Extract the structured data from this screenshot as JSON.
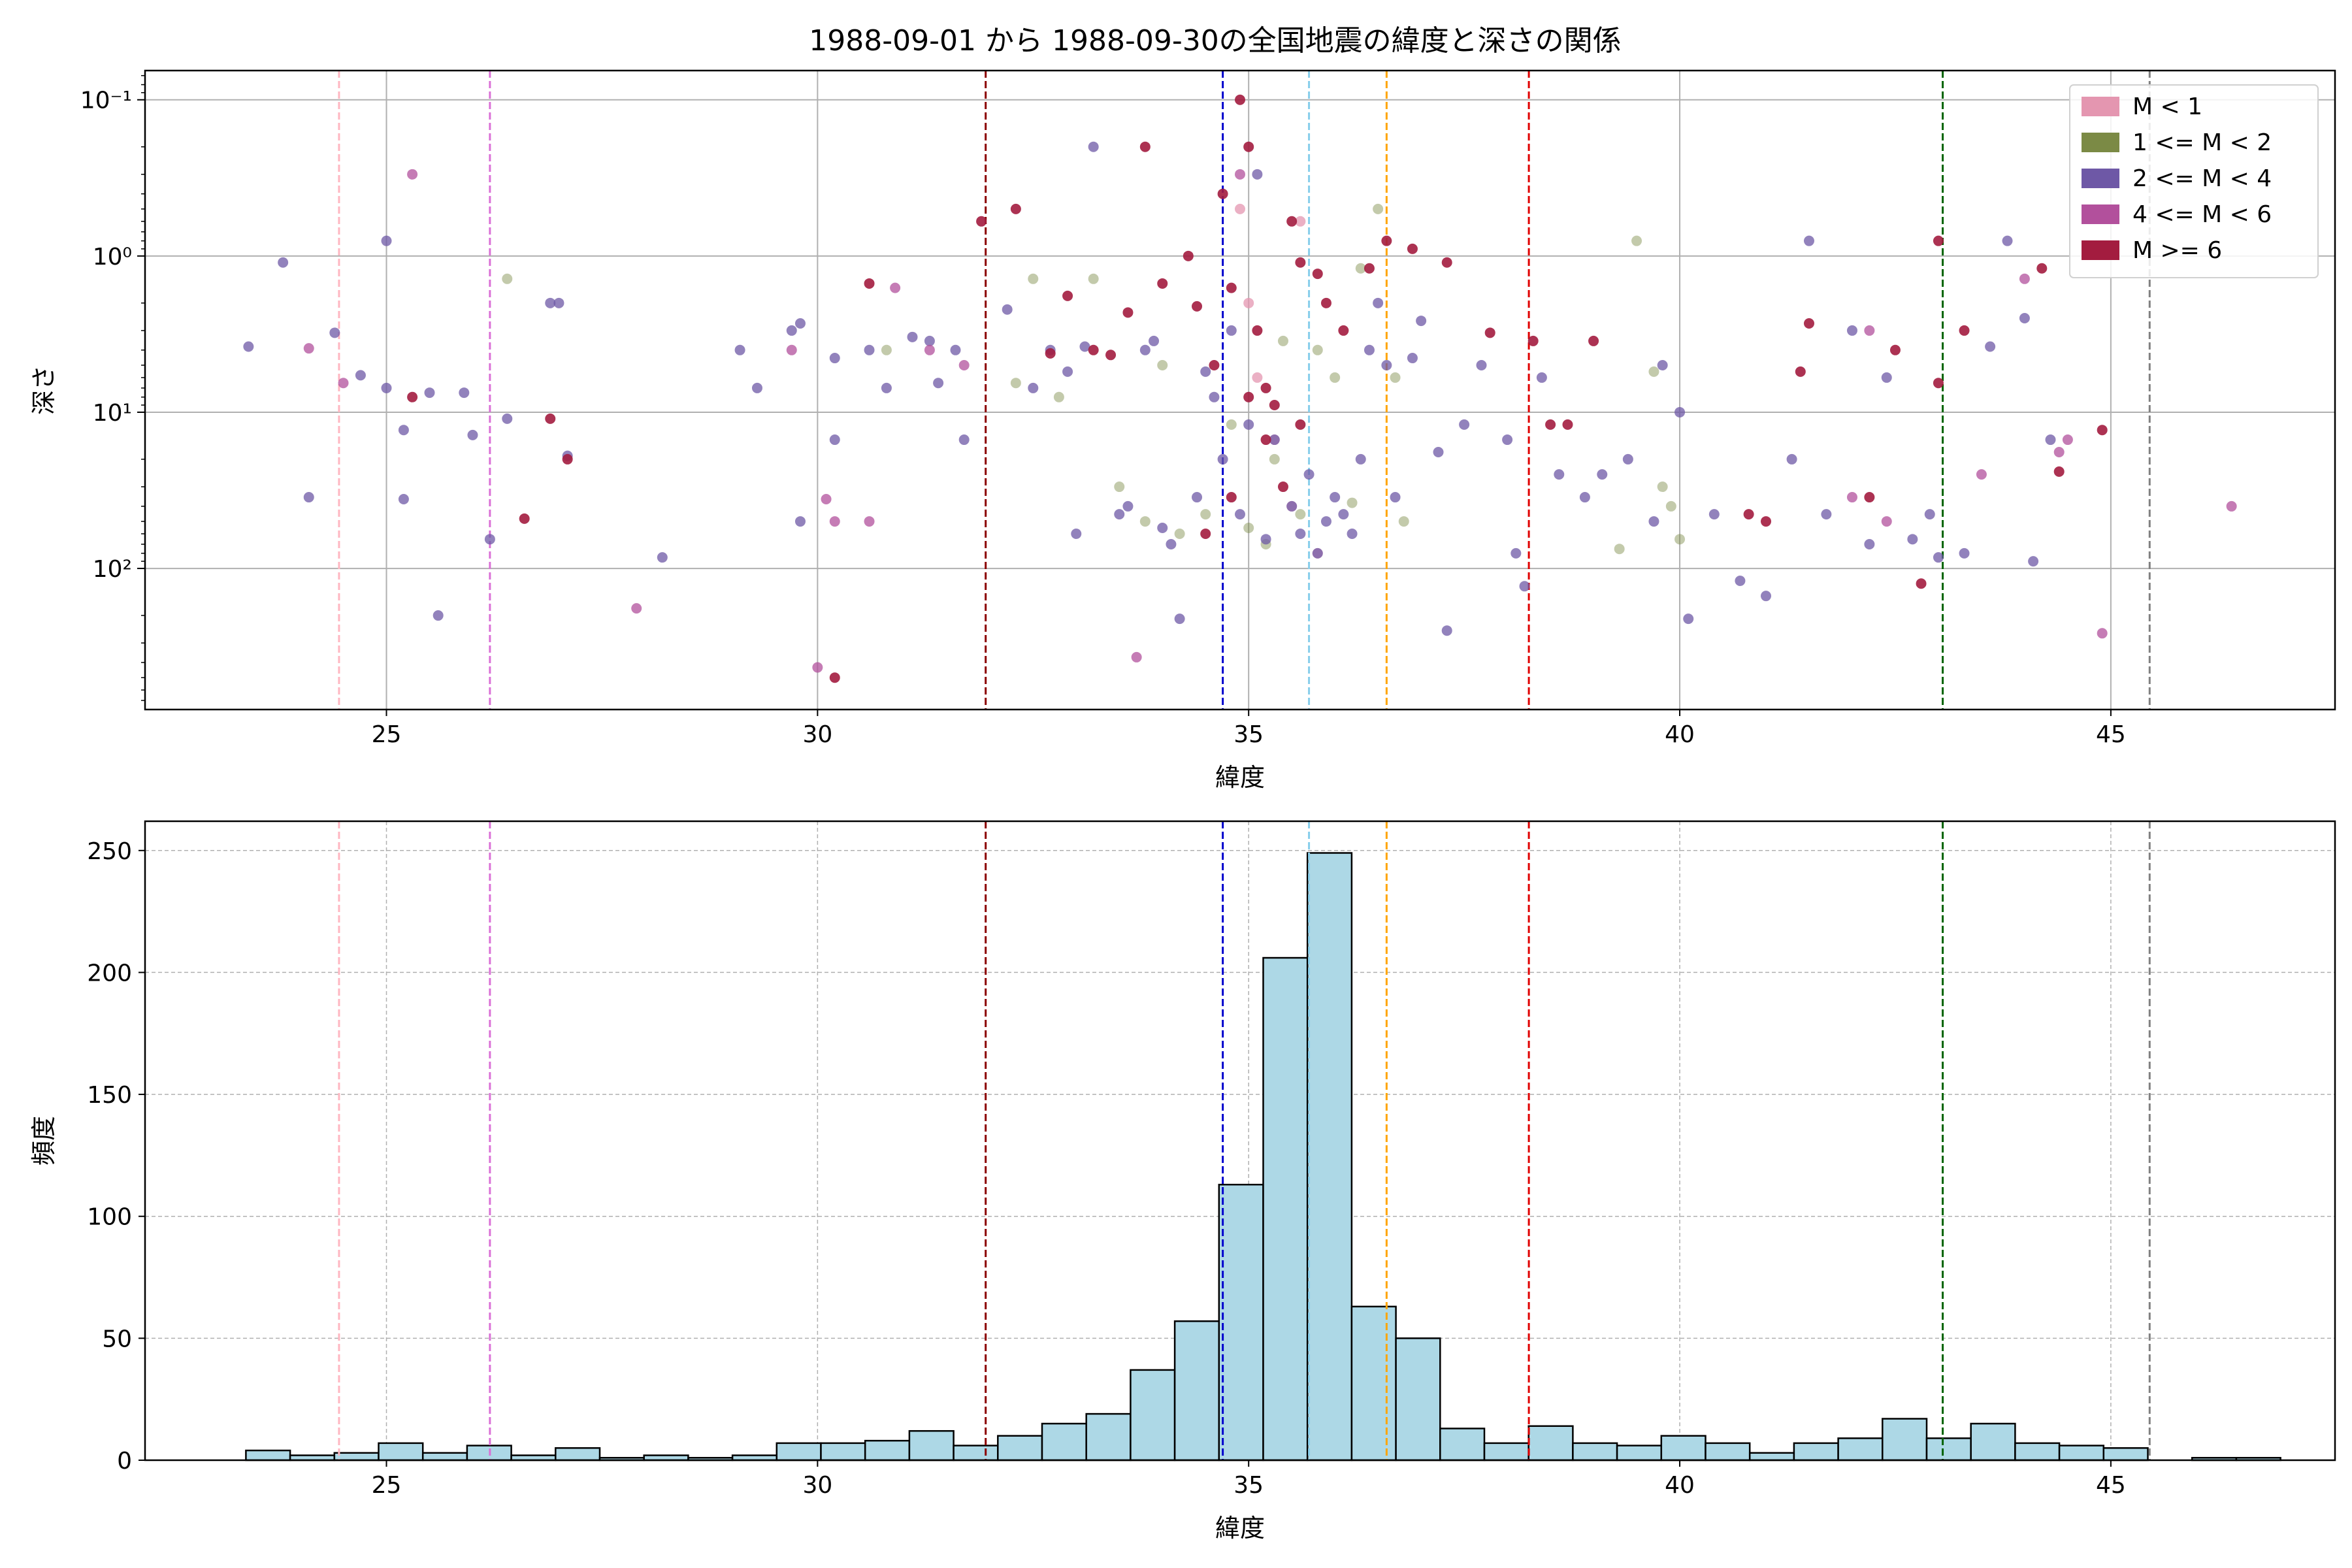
{
  "title": "1988-09-01 から 1988-09-30の全国地震の緯度と深さの関係",
  "colors": {
    "m_lt1": "#e496b0",
    "m_1_2": "#7b8a45",
    "m_2_4": "#6e58a6",
    "m_4_6": "#b2509c",
    "m_ge6": "#a31c3f",
    "hist_fill": "#add8e6",
    "grid": "#b0b0b0"
  },
  "chart_data": [
    {
      "type": "scatter",
      "title": "1988-09-01 から 1988-09-30の全国地震の緯度と深さの関係",
      "xlabel": "緯度",
      "ylabel": "深さ",
      "xlim": [
        22.2,
        47.6
      ],
      "y_scale": "log",
      "y_inverted": true,
      "ylim": [
        0.065,
        800
      ],
      "xticks": [
        25,
        30,
        35,
        40,
        45
      ],
      "ytick_labels": [
        "10⁻¹",
        "10⁰",
        "10¹",
        "10²"
      ],
      "grid": true,
      "legend_position": "top-right",
      "legend": [
        "M < 1",
        "1 <= M < 2",
        "2 <= M < 4",
        "4 <= M < 6",
        "M >= 6"
      ],
      "reference_lines": [
        {
          "x": 24.45,
          "color": "#ffb6c1"
        },
        {
          "x": 26.2,
          "color": "#da70d6"
        },
        {
          "x": 31.95,
          "color": "#8b0000"
        },
        {
          "x": 34.7,
          "color": "#0000cd"
        },
        {
          "x": 35.7,
          "color": "#87ceeb"
        },
        {
          "x": 36.6,
          "color": "#ffa500"
        },
        {
          "x": 38.25,
          "color": "#e00000"
        },
        {
          "x": 43.05,
          "color": "#006400"
        },
        {
          "x": 45.45,
          "color": "#808080"
        }
      ],
      "series": [
        {
          "name": "M < 1",
          "color": "#e496b0",
          "points": [
            [
              34.9,
              0.5
            ],
            [
              35.0,
              2
            ],
            [
              35.1,
              6
            ],
            [
              35.3,
              15
            ],
            [
              35.5,
              40
            ],
            [
              35.6,
              0.6
            ],
            [
              35.8,
              80
            ]
          ]
        },
        {
          "name": "1 <= M < 2",
          "color": "#7b8a45",
          "points": [
            [
              26.4,
              1.4
            ],
            [
              30.8,
              4
            ],
            [
              32.3,
              6.5
            ],
            [
              32.5,
              1.4
            ],
            [
              32.8,
              8
            ],
            [
              33.2,
              1.4
            ],
            [
              33.5,
              30
            ],
            [
              33.8,
              50
            ],
            [
              34.0,
              5
            ],
            [
              34.2,
              60
            ],
            [
              34.5,
              45
            ],
            [
              34.8,
              12
            ],
            [
              35.0,
              55
            ],
            [
              35.2,
              70
            ],
            [
              35.3,
              20
            ],
            [
              35.4,
              3.5
            ],
            [
              35.6,
              45
            ],
            [
              35.8,
              4
            ],
            [
              36.0,
              6
            ],
            [
              36.2,
              38
            ],
            [
              36.3,
              1.2
            ],
            [
              36.5,
              0.5
            ],
            [
              36.7,
              6
            ],
            [
              36.8,
              50
            ],
            [
              39.3,
              75
            ],
            [
              39.5,
              0.8
            ],
            [
              39.7,
              5.5
            ],
            [
              39.9,
              40
            ],
            [
              40.0,
              65
            ],
            [
              39.8,
              30
            ]
          ]
        },
        {
          "name": "2 <= M < 4",
          "color": "#6e58a6",
          "points": [
            [
              23.4,
              3.8
            ],
            [
              23.8,
              1.1
            ],
            [
              24.1,
              35
            ],
            [
              24.4,
              3.1
            ],
            [
              24.7,
              5.8
            ],
            [
              25.0,
              0.8
            ],
            [
              25.0,
              7
            ],
            [
              25.2,
              13
            ],
            [
              25.2,
              36
            ],
            [
              25.5,
              7.5
            ],
            [
              25.6,
              200
            ],
            [
              25.9,
              7.5
            ],
            [
              26.0,
              14
            ],
            [
              26.2,
              65
            ],
            [
              26.4,
              11
            ],
            [
              26.9,
              2
            ],
            [
              27.0,
              2
            ],
            [
              27.1,
              19
            ],
            [
              28.2,
              85
            ],
            [
              29.1,
              4
            ],
            [
              29.3,
              7
            ],
            [
              29.7,
              3
            ],
            [
              29.8,
              2.7
            ],
            [
              29.8,
              50
            ],
            [
              30.2,
              4.5
            ],
            [
              30.2,
              15
            ],
            [
              30.6,
              4
            ],
            [
              30.8,
              7
            ],
            [
              31.1,
              3.3
            ],
            [
              31.3,
              3.5
            ],
            [
              31.4,
              6.5
            ],
            [
              31.6,
              4
            ],
            [
              31.7,
              15
            ],
            [
              32.2,
              2.2
            ],
            [
              32.5,
              7
            ],
            [
              32.7,
              4
            ],
            [
              32.9,
              5.5
            ],
            [
              33.0,
              60
            ],
            [
              33.1,
              3.8
            ],
            [
              33.2,
              0.2
            ],
            [
              33.5,
              45
            ],
            [
              33.6,
              40
            ],
            [
              33.8,
              4
            ],
            [
              33.9,
              3.5
            ],
            [
              34.0,
              55
            ],
            [
              34.1,
              70
            ],
            [
              34.2,
              210
            ],
            [
              34.4,
              35
            ],
            [
              34.5,
              5.5
            ],
            [
              34.6,
              8
            ],
            [
              34.7,
              20
            ],
            [
              34.8,
              3
            ],
            [
              34.9,
              45
            ],
            [
              35.0,
              12
            ],
            [
              35.2,
              65
            ],
            [
              35.1,
              0.3
            ],
            [
              35.3,
              15
            ],
            [
              35.5,
              40
            ],
            [
              35.6,
              60
            ],
            [
              35.7,
              25
            ],
            [
              35.8,
              80
            ],
            [
              35.9,
              50
            ],
            [
              36.0,
              35
            ],
            [
              36.1,
              45
            ],
            [
              36.2,
              60
            ],
            [
              36.3,
              20
            ],
            [
              36.4,
              4
            ],
            [
              36.5,
              2
            ],
            [
              36.6,
              5
            ],
            [
              36.7,
              35
            ],
            [
              36.9,
              4.5
            ],
            [
              37.0,
              2.6
            ],
            [
              37.2,
              18
            ],
            [
              37.3,
              250
            ],
            [
              37.5,
              12
            ],
            [
              37.7,
              5
            ],
            [
              38.0,
              15
            ],
            [
              38.1,
              80
            ],
            [
              38.2,
              130
            ],
            [
              38.4,
              6
            ],
            [
              38.6,
              25
            ],
            [
              38.9,
              35
            ],
            [
              39.1,
              25
            ],
            [
              39.4,
              20
            ],
            [
              39.7,
              50
            ],
            [
              39.8,
              5
            ],
            [
              40.0,
              10
            ],
            [
              40.1,
              210
            ],
            [
              40.4,
              45
            ],
            [
              40.7,
              120
            ],
            [
              41.0,
              150
            ],
            [
              41.3,
              20
            ],
            [
              41.5,
              0.8
            ],
            [
              41.7,
              45
            ],
            [
              42.0,
              3
            ],
            [
              42.2,
              70
            ],
            [
              42.4,
              6
            ],
            [
              42.7,
              65
            ],
            [
              42.9,
              45
            ],
            [
              43.0,
              85
            ],
            [
              43.3,
              80
            ],
            [
              43.6,
              3.8
            ],
            [
              43.8,
              0.8
            ],
            [
              44.0,
              2.5
            ],
            [
              44.1,
              90
            ],
            [
              44.3,
              15
            ]
          ]
        },
        {
          "name": "4 <= M < 6",
          "color": "#b2509c",
          "points": [
            [
              24.1,
              3.9
            ],
            [
              24.5,
              6.5
            ],
            [
              25.3,
              0.3
            ],
            [
              27.9,
              180
            ],
            [
              29.7,
              4
            ],
            [
              30.0,
              430
            ],
            [
              30.1,
              36
            ],
            [
              30.2,
              50
            ],
            [
              30.6,
              50
            ],
            [
              30.9,
              1.6
            ],
            [
              31.3,
              4
            ],
            [
              31.7,
              5
            ],
            [
              33.7,
              370
            ],
            [
              34.9,
              0.3
            ],
            [
              42.0,
              35
            ],
            [
              42.4,
              50
            ],
            [
              42.2,
              3
            ],
            [
              43.5,
              25
            ],
            [
              44.0,
              1.4
            ],
            [
              44.4,
              18
            ],
            [
              44.5,
              15
            ],
            [
              44.9,
              260
            ],
            [
              46.4,
              40
            ]
          ]
        },
        {
          "name": "M >= 6",
          "color": "#a31c3f",
          "points": [
            [
              25.3,
              8
            ],
            [
              26.6,
              48
            ],
            [
              26.9,
              11
            ],
            [
              27.1,
              20
            ],
            [
              30.2,
              500
            ],
            [
              30.6,
              1.5
            ],
            [
              31.9,
              0.6
            ],
            [
              32.3,
              0.5
            ],
            [
              32.7,
              4.2
            ],
            [
              32.9,
              1.8
            ],
            [
              33.2,
              4
            ],
            [
              33.4,
              4.3
            ],
            [
              33.6,
              2.3
            ],
            [
              33.8,
              0.2
            ],
            [
              34.0,
              1.5
            ],
            [
              34.3,
              1.0
            ],
            [
              34.4,
              2.1
            ],
            [
              34.6,
              5.0
            ],
            [
              34.7,
              0.4
            ],
            [
              34.8,
              1.6
            ],
            [
              34.9,
              0.1
            ],
            [
              35.0,
              0.2
            ],
            [
              35.1,
              3.0
            ],
            [
              35.2,
              7.0
            ],
            [
              35.3,
              9.0
            ],
            [
              35.5,
              0.6
            ],
            [
              35.6,
              1.1
            ],
            [
              35.8,
              1.3
            ],
            [
              35.9,
              2.0
            ],
            [
              36.1,
              3.0
            ],
            [
              36.4,
              1.2
            ],
            [
              36.6,
              0.8
            ],
            [
              36.9,
              0.9
            ],
            [
              37.3,
              1.1
            ],
            [
              37.8,
              3.1
            ],
            [
              38.3,
              3.5
            ],
            [
              38.5,
              12
            ],
            [
              38.7,
              12
            ],
            [
              39.0,
              3.5
            ],
            [
              40.8,
              45
            ],
            [
              41.0,
              50
            ],
            [
              41.4,
              5.5
            ],
            [
              41.5,
              2.7
            ],
            [
              42.2,
              35
            ],
            [
              42.5,
              4.0
            ],
            [
              42.8,
              125
            ],
            [
              43.0,
              0.8
            ],
            [
              43.0,
              6.5
            ],
            [
              43.3,
              3.0
            ],
            [
              44.2,
              1.2
            ],
            [
              44.4,
              24
            ],
            [
              44.9,
              13
            ],
            [
              35.0,
              8
            ],
            [
              35.2,
              15
            ],
            [
              35.4,
              30
            ],
            [
              35.6,
              12
            ],
            [
              34.5,
              60
            ],
            [
              34.8,
              35
            ]
          ]
        }
      ]
    },
    {
      "type": "bar",
      "xlabel": "緯度",
      "ylabel": "頻度",
      "xlim": [
        22.2,
        47.6
      ],
      "ylim": [
        0,
        262
      ],
      "xticks": [
        25,
        30,
        35,
        40,
        45
      ],
      "yticks": [
        0,
        50,
        100,
        150,
        200,
        250
      ],
      "grid": true,
      "bin_start": 23.37,
      "bin_width": 0.513,
      "values": [
        4,
        2,
        3,
        7,
        3,
        6,
        2,
        5,
        1,
        2,
        1,
        2,
        7,
        7,
        8,
        12,
        6,
        10,
        15,
        19,
        37,
        57,
        113,
        206,
        249,
        63,
        50,
        13,
        7,
        14,
        7,
        6,
        10,
        7,
        3,
        7,
        9,
        17,
        9,
        15,
        7,
        6,
        5,
        0,
        1,
        1
      ],
      "reference_lines": [
        {
          "x": 24.45,
          "color": "#ffb6c1"
        },
        {
          "x": 26.2,
          "color": "#da70d6"
        },
        {
          "x": 31.95,
          "color": "#8b0000"
        },
        {
          "x": 34.7,
          "color": "#0000cd"
        },
        {
          "x": 35.7,
          "color": "#87ceeb"
        },
        {
          "x": 36.6,
          "color": "#ffa500"
        },
        {
          "x": 38.25,
          "color": "#e00000"
        },
        {
          "x": 43.05,
          "color": "#006400"
        },
        {
          "x": 45.45,
          "color": "#808080"
        }
      ]
    }
  ]
}
